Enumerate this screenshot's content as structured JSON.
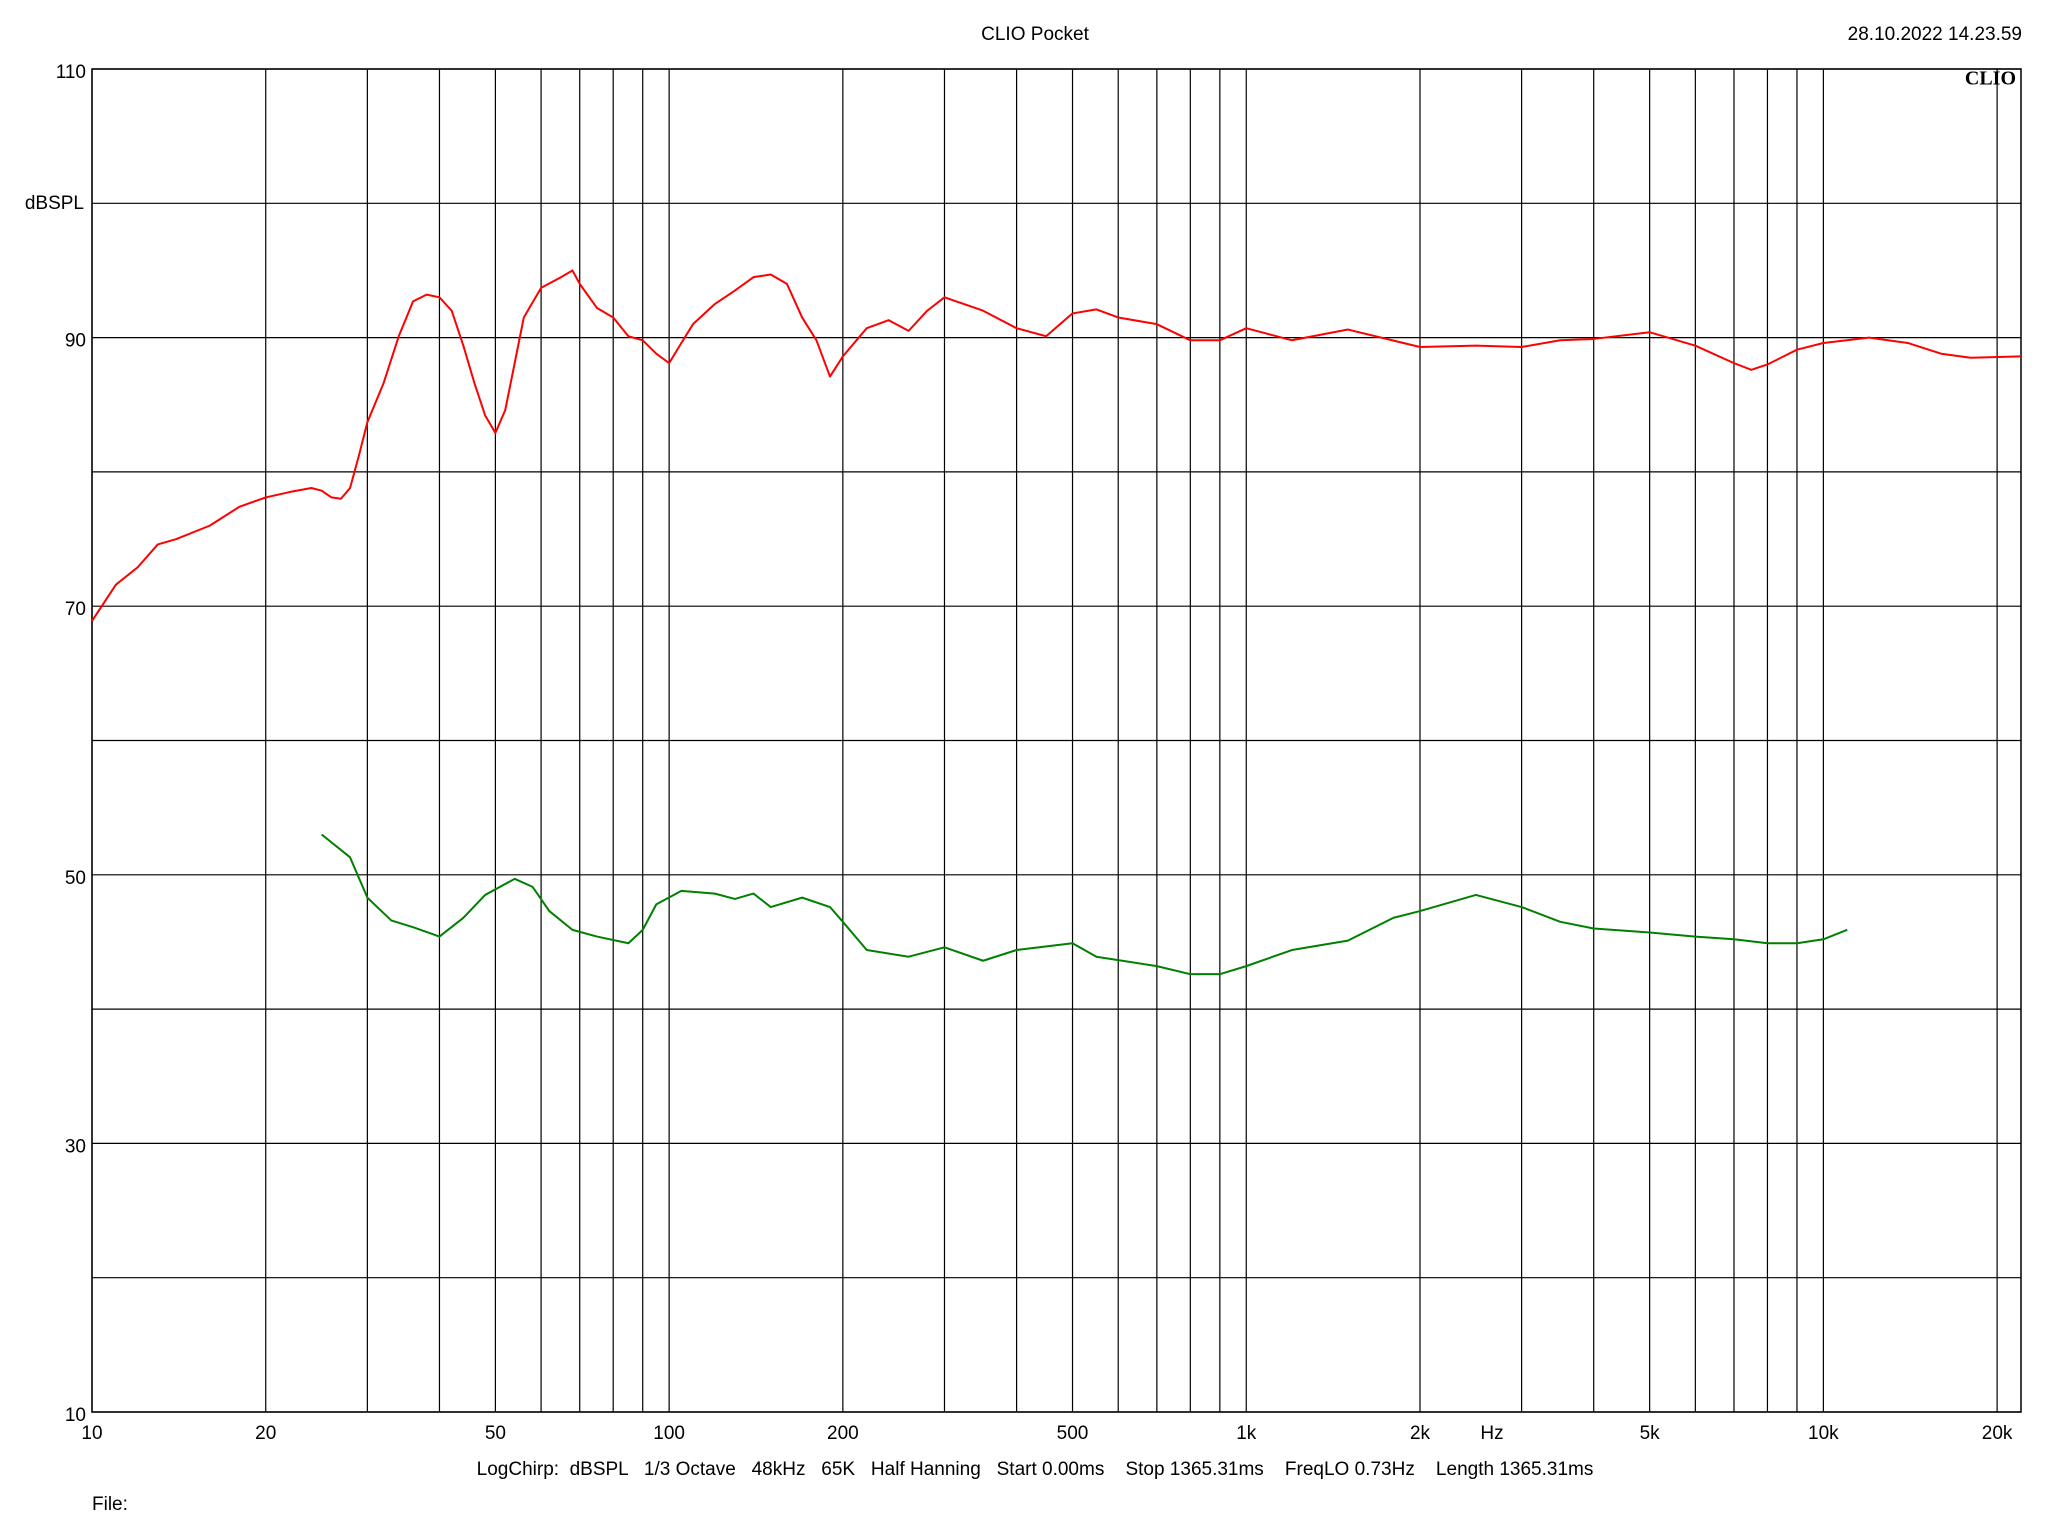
{
  "chart_data": {
    "type": "line",
    "title": "CLIO Pocket",
    "timestamp": "28.10.2022 14.23.59",
    "logo": "CLIO",
    "ylabel": "dBSPL",
    "xlabel": "Hz",
    "settings": "LogChirp:  dBSPL   1/3 Octave   48kHz   65K   Half Hanning   Start 0.00ms    Stop 1365.31ms    FreqLO 0.73Hz    Length 1365.31ms",
    "file_label": "File:",
    "xscale": "log",
    "grid": true,
    "xlim": [
      10,
      22000
    ],
    "ylim": [
      10,
      110
    ],
    "yticks": [
      10,
      {
        "value": 20,
        "label": null
      },
      30,
      {
        "value": 40,
        "label": null
      },
      50,
      {
        "value": 60,
        "label": null
      },
      70,
      {
        "value": 80,
        "label": null
      },
      90,
      {
        "value": 100,
        "label": null
      },
      110
    ],
    "xticks": [
      10,
      20,
      {
        "value": 30,
        "label": null
      },
      {
        "value": 40,
        "label": null
      },
      50,
      {
        "value": 60,
        "label": null
      },
      {
        "value": 70,
        "label": null
      },
      {
        "value": 80,
        "label": null
      },
      {
        "value": 90,
        "label": null
      },
      100,
      200,
      {
        "value": 300,
        "label": null
      },
      {
        "value": 400,
        "label": null
      },
      500,
      {
        "value": 600,
        "label": null
      },
      {
        "value": 700,
        "label": null
      },
      {
        "value": 800,
        "label": null
      },
      {
        "value": 900,
        "label": null
      },
      {
        "value": 1000,
        "label": "1k"
      },
      {
        "value": 2000,
        "label": "2k"
      },
      {
        "value": 3000,
        "label": null
      },
      {
        "value": 4000,
        "label": null
      },
      {
        "value": 5000,
        "label": "5k"
      },
      {
        "value": 6000,
        "label": null
      },
      {
        "value": 7000,
        "label": null
      },
      {
        "value": 8000,
        "label": null
      },
      {
        "value": 9000,
        "label": null
      },
      {
        "value": 10000,
        "label": "10k"
      },
      {
        "value": 20000,
        "label": "20k"
      }
    ],
    "series": [
      {
        "color": "#ff0000",
        "x": [
          10,
          11,
          12,
          13,
          14,
          16,
          18,
          20,
          22,
          24,
          25,
          26,
          27,
          28,
          29,
          30,
          32,
          34,
          36,
          38,
          40,
          42,
          44,
          46,
          48,
          50,
          52,
          54,
          56,
          60,
          65,
          68,
          70,
          75,
          80,
          85,
          90,
          95,
          100,
          105,
          110,
          120,
          130,
          140,
          150,
          160,
          170,
          180,
          190,
          200,
          220,
          240,
          260,
          280,
          300,
          350,
          400,
          450,
          500,
          550,
          600,
          700,
          800,
          900,
          1000,
          1200,
          1500,
          2000,
          2500,
          3000,
          3500,
          4000,
          5000,
          6000,
          7000,
          7500,
          8000,
          9000,
          10000,
          12000,
          14000,
          16000,
          18000,
          22000
        ],
        "values": [
          68.9,
          71.6,
          72.9,
          74.6,
          75.0,
          76.0,
          77.4,
          78.1,
          78.5,
          78.8,
          78.6,
          78.1,
          78.0,
          78.8,
          81.2,
          83.7,
          86.6,
          90.1,
          92.7,
          93.2,
          93.0,
          92.0,
          89.4,
          86.6,
          84.2,
          82.9,
          84.6,
          88.1,
          91.5,
          93.7,
          94.5,
          95.0,
          94.0,
          92.2,
          91.5,
          90.1,
          89.8,
          88.8,
          88.1,
          89.6,
          91.0,
          92.5,
          93.5,
          94.5,
          94.7,
          94.0,
          91.5,
          89.8,
          87.1,
          88.6,
          90.7,
          91.3,
          90.5,
          92.0,
          93.0,
          92.0,
          90.7,
          90.1,
          91.8,
          92.1,
          91.5,
          91.0,
          89.8,
          89.8,
          90.7,
          89.8,
          90.6,
          89.3,
          89.4,
          89.3,
          89.8,
          89.9,
          90.4,
          89.4,
          88.1,
          87.6,
          88.0,
          89.1,
          89.6,
          90.0,
          89.6,
          88.8,
          88.5,
          88.6
        ]
      },
      {
        "color": "#008000",
        "x": [
          25,
          28,
          30,
          33,
          36,
          40,
          44,
          48,
          54,
          58,
          62,
          68,
          75,
          85,
          90,
          95,
          105,
          120,
          130,
          140,
          150,
          170,
          190,
          200,
          220,
          260,
          300,
          350,
          400,
          500,
          550,
          700,
          800,
          900,
          1000,
          1200,
          1500,
          1800,
          2000,
          2500,
          3000,
          3500,
          4000,
          5000,
          6000,
          7000,
          8000,
          9000,
          10000,
          11000
        ],
        "values": [
          53.0,
          51.3,
          48.3,
          46.6,
          46.1,
          45.4,
          46.8,
          48.5,
          49.7,
          49.1,
          47.3,
          45.9,
          45.4,
          44.9,
          45.9,
          47.8,
          48.8,
          48.6,
          48.2,
          48.6,
          47.6,
          48.3,
          47.6,
          46.5,
          44.4,
          43.9,
          44.6,
          43.6,
          44.4,
          44.9,
          43.9,
          43.2,
          42.6,
          42.6,
          43.2,
          44.4,
          45.1,
          46.8,
          47.3,
          48.5,
          47.6,
          46.5,
          46.0,
          45.7,
          45.4,
          45.2,
          44.9,
          44.9,
          45.2,
          45.9
        ]
      }
    ]
  }
}
